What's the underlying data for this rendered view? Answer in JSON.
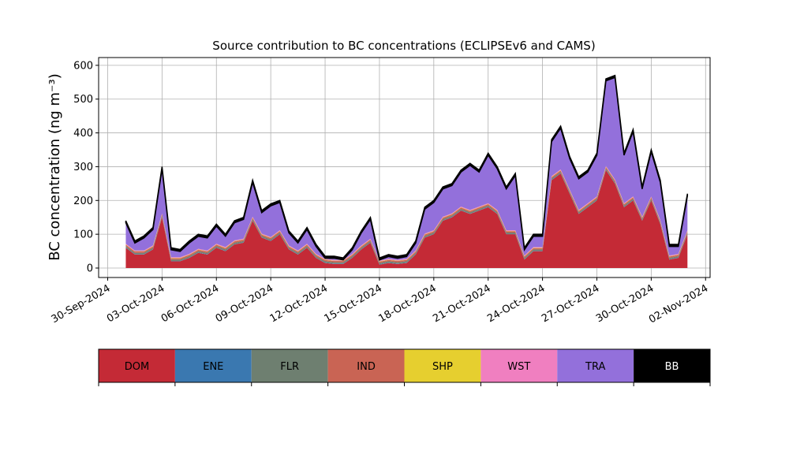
{
  "chart_data": {
    "type": "stacked_area",
    "title": "Source contribution to BC concentrations (ECLIPSEv6 and CAMS)",
    "ylabel": "BC concentration (ng m⁻³)",
    "x": [
      "2024-10-01T00:00",
      "2024-10-01T12:00",
      "2024-10-02T00:00",
      "2024-10-02T12:00",
      "2024-10-03T00:00",
      "2024-10-03T12:00",
      "2024-10-04T00:00",
      "2024-10-04T12:00",
      "2024-10-05T00:00",
      "2024-10-05T12:00",
      "2024-10-06T00:00",
      "2024-10-06T12:00",
      "2024-10-07T00:00",
      "2024-10-07T12:00",
      "2024-10-08T00:00",
      "2024-10-08T12:00",
      "2024-10-09T00:00",
      "2024-10-09T12:00",
      "2024-10-10T00:00",
      "2024-10-10T12:00",
      "2024-10-11T00:00",
      "2024-10-11T12:00",
      "2024-10-12T00:00",
      "2024-10-12T12:00",
      "2024-10-13T00:00",
      "2024-10-13T12:00",
      "2024-10-14T00:00",
      "2024-10-14T12:00",
      "2024-10-15T00:00",
      "2024-10-15T12:00",
      "2024-10-16T00:00",
      "2024-10-16T12:00",
      "2024-10-17T00:00",
      "2024-10-17T12:00",
      "2024-10-18T00:00",
      "2024-10-18T12:00",
      "2024-10-19T00:00",
      "2024-10-19T12:00",
      "2024-10-20T00:00",
      "2024-10-20T12:00",
      "2024-10-21T00:00",
      "2024-10-21T12:00",
      "2024-10-22T00:00",
      "2024-10-22T12:00",
      "2024-10-23T00:00",
      "2024-10-23T12:00",
      "2024-10-24T00:00",
      "2024-10-24T12:00",
      "2024-10-25T00:00",
      "2024-10-25T12:00",
      "2024-10-26T00:00",
      "2024-10-26T12:00",
      "2024-10-27T00:00",
      "2024-10-27T12:00",
      "2024-10-28T00:00",
      "2024-10-28T12:00",
      "2024-10-29T00:00",
      "2024-10-29T12:00",
      "2024-10-30T00:00",
      "2024-10-30T12:00",
      "2024-10-31T00:00",
      "2024-10-31T12:00",
      "2024-11-01T00:00"
    ],
    "series": [
      {
        "name": "DOM",
        "color": "#c42a36",
        "values": [
          60,
          40,
          40,
          55,
          150,
          20,
          20,
          30,
          45,
          40,
          60,
          50,
          70,
          75,
          140,
          90,
          80,
          100,
          55,
          40,
          60,
          30,
          15,
          12,
          12,
          30,
          55,
          75,
          10,
          15,
          12,
          15,
          40,
          90,
          100,
          140,
          150,
          170,
          160,
          170,
          180,
          160,
          100,
          100,
          25,
          50,
          50,
          260,
          280,
          220,
          160,
          180,
          200,
          290,
          250,
          180,
          200,
          140,
          200,
          130,
          25,
          30,
          100
        ]
      },
      {
        "name": "ENE",
        "color": "#3a78b0",
        "values": [
          1,
          1,
          1,
          1,
          1,
          1,
          1,
          1,
          1,
          1,
          1,
          1,
          1,
          1,
          1,
          1,
          1,
          1,
          1,
          1,
          1,
          1,
          1,
          1,
          1,
          1,
          1,
          1,
          1,
          1,
          1,
          1,
          1,
          1,
          1,
          1,
          1,
          1,
          1,
          1,
          1,
          1,
          1,
          1,
          1,
          1,
          1,
          1,
          1,
          1,
          1,
          1,
          1,
          1,
          1,
          1,
          1,
          1,
          1,
          1,
          1,
          1,
          1
        ]
      },
      {
        "name": "FLR",
        "color": "#6e7f70",
        "values": [
          4,
          4,
          4,
          4,
          4,
          4,
          4,
          4,
          4,
          4,
          4,
          4,
          4,
          4,
          4,
          4,
          4,
          4,
          4,
          4,
          4,
          4,
          4,
          4,
          4,
          4,
          4,
          4,
          4,
          4,
          4,
          4,
          4,
          4,
          4,
          4,
          4,
          4,
          4,
          4,
          4,
          4,
          4,
          4,
          4,
          4,
          4,
          4,
          4,
          4,
          4,
          4,
          4,
          4,
          4,
          4,
          4,
          4,
          4,
          4,
          4,
          4,
          4
        ]
      },
      {
        "name": "IND",
        "color": "#c96454",
        "values": [
          4,
          4,
          4,
          4,
          4,
          4,
          4,
          4,
          4,
          4,
          4,
          4,
          4,
          4,
          4,
          4,
          4,
          4,
          4,
          4,
          4,
          4,
          4,
          4,
          4,
          4,
          4,
          4,
          4,
          4,
          4,
          4,
          4,
          4,
          4,
          4,
          4,
          4,
          4,
          4,
          4,
          4,
          4,
          4,
          4,
          4,
          4,
          4,
          4,
          4,
          4,
          4,
          4,
          4,
          4,
          4,
          4,
          4,
          4,
          4,
          4,
          4,
          4
        ]
      },
      {
        "name": "SHP",
        "color": "#e6cf2f",
        "values": [
          1,
          1,
          1,
          1,
          1,
          1,
          1,
          1,
          1,
          1,
          1,
          1,
          1,
          1,
          1,
          1,
          1,
          1,
          1,
          1,
          1,
          1,
          1,
          1,
          1,
          1,
          1,
          1,
          1,
          1,
          1,
          1,
          1,
          1,
          1,
          1,
          1,
          1,
          1,
          1,
          1,
          1,
          1,
          1,
          1,
          1,
          1,
          1,
          1,
          1,
          1,
          1,
          1,
          1,
          1,
          1,
          1,
          1,
          1,
          1,
          1,
          1,
          1
        ]
      },
      {
        "name": "WST",
        "color": "#f07fc0",
        "values": [
          2,
          2,
          2,
          2,
          2,
          2,
          2,
          2,
          2,
          2,
          2,
          2,
          2,
          2,
          2,
          2,
          2,
          2,
          2,
          2,
          2,
          2,
          2,
          2,
          2,
          2,
          2,
          2,
          2,
          2,
          2,
          2,
          2,
          2,
          2,
          2,
          2,
          2,
          2,
          2,
          2,
          2,
          2,
          2,
          2,
          2,
          2,
          2,
          2,
          2,
          2,
          2,
          2,
          2,
          2,
          2,
          2,
          2,
          2,
          2,
          2,
          2,
          2
        ]
      },
      {
        "name": "TRA",
        "color": "#9370db",
        "values": [
          62,
          22,
          37,
          47,
          132,
          22,
          17,
          32,
          37,
          37,
          52,
          32,
          52,
          57,
          102,
          62,
          92,
          82,
          37,
          22,
          42,
          22,
          2,
          5,
          0,
          12,
          37,
          57,
          2,
          7,
          5,
          7,
          22,
          72,
          82,
          82,
          82,
          102,
          132,
          102,
          142,
          122,
          122,
          162,
          17,
          32,
          32,
          102,
          122,
          92,
          92,
          92,
          122,
          252,
          302,
          142,
          192,
          82,
          132,
          112,
          27,
          22,
          102
        ]
      },
      {
        "name": "BB",
        "color": "#000000",
        "values": [
          6,
          6,
          6,
          6,
          6,
          6,
          6,
          6,
          6,
          6,
          6,
          6,
          6,
          6,
          6,
          6,
          6,
          6,
          6,
          6,
          6,
          6,
          6,
          6,
          6,
          6,
          6,
          6,
          6,
          6,
          6,
          6,
          6,
          6,
          6,
          6,
          6,
          6,
          6,
          6,
          6,
          6,
          6,
          6,
          6,
          6,
          6,
          6,
          6,
          6,
          6,
          6,
          6,
          6,
          6,
          6,
          6,
          6,
          6,
          6,
          6,
          6,
          6
        ]
      }
    ],
    "xlim": [
      "2024-09-29T12:00",
      "2024-11-02T06:00"
    ],
    "xticks": [
      {
        "value": "2024-09-30T00:00",
        "label": "30-Sep-2024"
      },
      {
        "value": "2024-10-03T00:00",
        "label": "03-Oct-2024"
      },
      {
        "value": "2024-10-06T00:00",
        "label": "06-Oct-2024"
      },
      {
        "value": "2024-10-09T00:00",
        "label": "09-Oct-2024"
      },
      {
        "value": "2024-10-12T00:00",
        "label": "12-Oct-2024"
      },
      {
        "value": "2024-10-15T00:00",
        "label": "15-Oct-2024"
      },
      {
        "value": "2024-10-18T00:00",
        "label": "18-Oct-2024"
      },
      {
        "value": "2024-10-21T00:00",
        "label": "21-Oct-2024"
      },
      {
        "value": "2024-10-24T00:00",
        "label": "24-Oct-2024"
      },
      {
        "value": "2024-10-27T00:00",
        "label": "27-Oct-2024"
      },
      {
        "value": "2024-10-30T00:00",
        "label": "30-Oct-2024"
      },
      {
        "value": "2024-11-02T00:00",
        "label": "02-Nov-2024"
      }
    ],
    "ylim": [
      -28,
      623
    ],
    "yticks": [
      0,
      100,
      200,
      300,
      400,
      500,
      600
    ],
    "grid": true
  }
}
